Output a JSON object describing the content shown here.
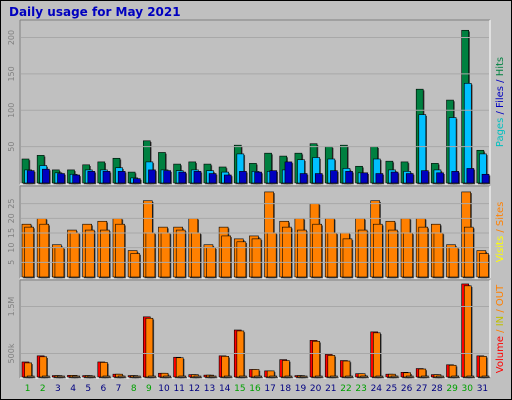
{
  "chart_data": [
    {
      "type": "bar",
      "panel": "top",
      "ylim": [
        0,
        220
      ],
      "yticks": [
        50,
        100,
        150,
        200
      ],
      "categories": [
        "1",
        "2",
        "3",
        "4",
        "5",
        "6",
        "7",
        "8",
        "9",
        "10",
        "11",
        "12",
        "13",
        "14",
        "15",
        "16",
        "17",
        "18",
        "19",
        "20",
        "21",
        "22",
        "23",
        "24",
        "25",
        "26",
        "27",
        "28",
        "29",
        "30",
        "31"
      ],
      "series": [
        {
          "name": "Hits",
          "color": "#008040",
          "values": [
            33,
            38,
            18,
            18,
            25,
            29,
            34,
            15,
            58,
            42,
            26,
            29,
            26,
            22,
            52,
            27,
            41,
            37,
            41,
            54,
            50,
            52,
            23,
            50,
            30,
            29,
            129,
            27,
            114,
            210,
            45
          ]
        },
        {
          "name": "Files",
          "color": "#00c0ff",
          "values": [
            18,
            24,
            14,
            12,
            18,
            18,
            21,
            7,
            29,
            18,
            17,
            18,
            17,
            15,
            40,
            16,
            16,
            18,
            32,
            35,
            33,
            20,
            14,
            33,
            18,
            16,
            94,
            18,
            90,
            137,
            40
          ]
        },
        {
          "name": "Pages",
          "color": "#0000c0",
          "values": [
            17,
            19,
            13,
            11,
            16,
            16,
            16,
            6,
            18,
            17,
            15,
            16,
            13,
            11,
            16,
            15,
            17,
            29,
            13,
            13,
            17,
            16,
            14,
            13,
            15,
            13,
            17,
            14,
            16,
            20,
            12
          ]
        }
      ],
      "legend": [
        {
          "text": "Pages",
          "color": "#00c0c0"
        },
        {
          "text": " / ",
          "color": "#0000c0"
        },
        {
          "text": "Files",
          "color": "#0000c0"
        },
        {
          "text": " / ",
          "color": "#0000c0"
        },
        {
          "text": "Hits",
          "color": "#008040"
        }
      ]
    },
    {
      "type": "bar",
      "panel": "middle",
      "ylim": [
        0,
        30
      ],
      "yticks": [
        5,
        10,
        15,
        20,
        25
      ],
      "categories": [
        "1",
        "2",
        "3",
        "4",
        "5",
        "6",
        "7",
        "8",
        "9",
        "10",
        "11",
        "12",
        "13",
        "14",
        "15",
        "16",
        "17",
        "18",
        "19",
        "20",
        "21",
        "22",
        "23",
        "24",
        "25",
        "26",
        "27",
        "28",
        "29",
        "30",
        "31"
      ],
      "series": [
        {
          "name": "Visits",
          "color": "#ff8000",
          "values": [
            18,
            20,
            11,
            16,
            18,
            19,
            20,
            9,
            26,
            17,
            17,
            20,
            11,
            17,
            13,
            14,
            29,
            19,
            20,
            25,
            20,
            15,
            20,
            26,
            19,
            20,
            20,
            18,
            11,
            29,
            9
          ]
        },
        {
          "name": "Sites",
          "color": "#ff8000",
          "values": [
            17,
            18,
            10,
            15,
            16,
            16,
            18,
            8,
            15,
            15,
            16,
            15,
            10,
            14,
            12,
            13,
            15,
            17,
            16,
            18,
            15,
            13,
            16,
            18,
            16,
            15,
            17,
            15,
            10,
            17,
            8
          ]
        }
      ],
      "legend": [
        {
          "text": "Visits",
          "color": "#ffff00"
        },
        {
          "text": " / ",
          "color": "#ff8000"
        },
        {
          "text": "Sites",
          "color": "#ff8000"
        }
      ]
    },
    {
      "type": "bar",
      "panel": "bottom",
      "ylim": [
        0,
        2000000
      ],
      "yticks": [
        {
          "value": 500000,
          "label": "500k"
        },
        {
          "value": 1500000,
          "label": "1.5M"
        }
      ],
      "categories": [
        "1",
        "2",
        "3",
        "4",
        "5",
        "6",
        "7",
        "8",
        "9",
        "10",
        "11",
        "12",
        "13",
        "14",
        "15",
        "16",
        "17",
        "18",
        "19",
        "20",
        "21",
        "22",
        "23",
        "24",
        "25",
        "26",
        "27",
        "28",
        "29",
        "30",
        "31"
      ],
      "series": [
        {
          "name": "Volume",
          "color": "#ff0000",
          "values": [
            320000,
            450000,
            30000,
            35000,
            30000,
            320000,
            60000,
            30000,
            1280000,
            80000,
            420000,
            50000,
            40000,
            450000,
            1000000,
            160000,
            130000,
            370000,
            30000,
            780000,
            480000,
            350000,
            70000,
            960000,
            60000,
            100000,
            180000,
            50000,
            260000,
            1980000,
            450000
          ]
        },
        {
          "name": "OUT",
          "color": "#ff8000",
          "values": [
            300000,
            430000,
            30000,
            35000,
            30000,
            310000,
            60000,
            30000,
            1250000,
            80000,
            410000,
            50000,
            40000,
            440000,
            980000,
            160000,
            130000,
            350000,
            30000,
            760000,
            460000,
            340000,
            70000,
            940000,
            60000,
            90000,
            170000,
            50000,
            250000,
            1940000,
            440000
          ]
        },
        {
          "name": "IN",
          "color": "#ffc080",
          "values": [
            5000,
            6000,
            2000,
            2000,
            2000,
            5000,
            3000,
            2000,
            8000,
            3000,
            6000,
            2000,
            2000,
            5000,
            9000,
            3000,
            3000,
            4000,
            2000,
            7000,
            5000,
            4000,
            3000,
            8000,
            3000,
            3000,
            4000,
            2000,
            4000,
            10000,
            5000
          ]
        }
      ],
      "legend": [
        {
          "text": "Volume",
          "color": "#ff0000"
        },
        {
          "text": " / ",
          "color": "#ff8000"
        },
        {
          "text": "IN",
          "color": "#c0c000"
        },
        {
          "text": " / ",
          "color": "#ff8000"
        },
        {
          "text": "OUT",
          "color": "#ff8000"
        }
      ]
    }
  ],
  "title": "Daily usage for May 2021",
  "days": [
    "1",
    "2",
    "3",
    "4",
    "5",
    "6",
    "7",
    "8",
    "9",
    "10",
    "11",
    "12",
    "13",
    "14",
    "15",
    "16",
    "17",
    "18",
    "19",
    "20",
    "21",
    "22",
    "23",
    "24",
    "25",
    "26",
    "27",
    "28",
    "29",
    "30",
    "31"
  ],
  "weekend_days": [
    "1",
    "2",
    "8",
    "9",
    "15",
    "16",
    "22",
    "23",
    "29",
    "30"
  ],
  "colors": {
    "background": "#c0c0c0",
    "title": "#0000c0",
    "weekday_label": "#000080",
    "weekend_label": "#00a000"
  }
}
